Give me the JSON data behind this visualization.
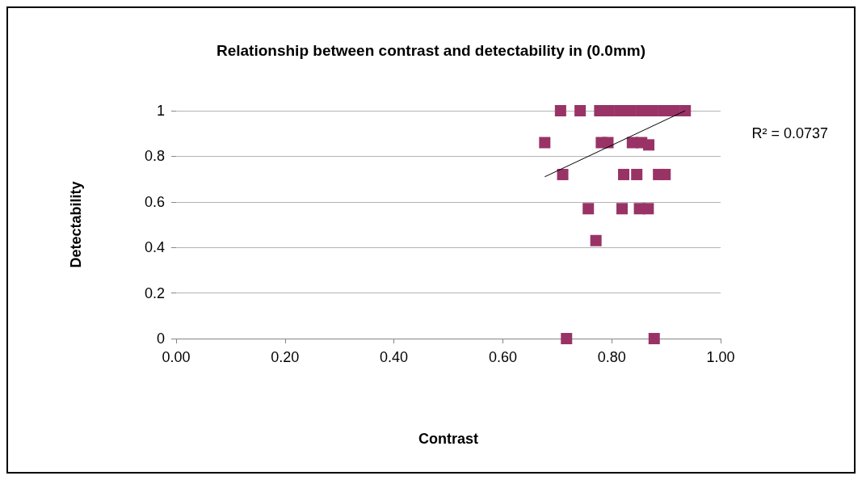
{
  "chart_data": {
    "type": "scatter",
    "title": "Relationship between contrast and detectability in (0.0mm)",
    "xlabel": "Contrast",
    "ylabel": "Detectability",
    "xlim": [
      0,
      1
    ],
    "xticks": [
      {
        "value": 0,
        "label": "0.00"
      },
      {
        "value": 0.2,
        "label": "0.20"
      },
      {
        "value": 0.4,
        "label": "0.40"
      },
      {
        "value": 0.6,
        "label": "0.60"
      },
      {
        "value": 0.8,
        "label": "0.80"
      },
      {
        "value": 1,
        "label": "1.00"
      }
    ],
    "ylim": [
      0,
      1
    ],
    "yticks": [
      0,
      0.2,
      0.4,
      0.6,
      0.8,
      1
    ],
    "grid": "y",
    "annotations": [
      "R² = 0.0737"
    ],
    "series": [
      {
        "marker": "square",
        "color": "#993366",
        "x": [
          0.706,
          0.742,
          0.778,
          0.795,
          0.815,
          0.835,
          0.855,
          0.875,
          0.895,
          0.915,
          0.935,
          0.677,
          0.781,
          0.793,
          0.838,
          0.855,
          0.868,
          0.71,
          0.822,
          0.846,
          0.886,
          0.898,
          0.757,
          0.819,
          0.851,
          0.867,
          0.771,
          0.717,
          0.878
        ],
        "values": [
          1,
          1,
          1,
          1,
          1,
          1,
          1,
          1,
          1,
          1,
          1,
          0.86,
          0.86,
          0.86,
          0.86,
          0.86,
          0.85,
          0.72,
          0.72,
          0.72,
          0.72,
          0.72,
          0.57,
          0.57,
          0.57,
          0.57,
          0.43,
          0,
          0
        ]
      },
      {
        "type": "line",
        "marker": "none",
        "color": "#000000",
        "x": [
          0.677,
          0.935
        ],
        "values": [
          0.71,
          1.0
        ]
      }
    ]
  }
}
